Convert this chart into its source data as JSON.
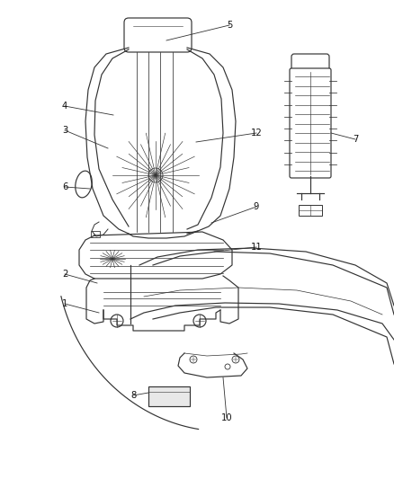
{
  "bg_color": "#ffffff",
  "line_color": "#333333",
  "label_color": "#111111",
  "figsize": [
    4.38,
    5.33
  ],
  "dpi": 100
}
